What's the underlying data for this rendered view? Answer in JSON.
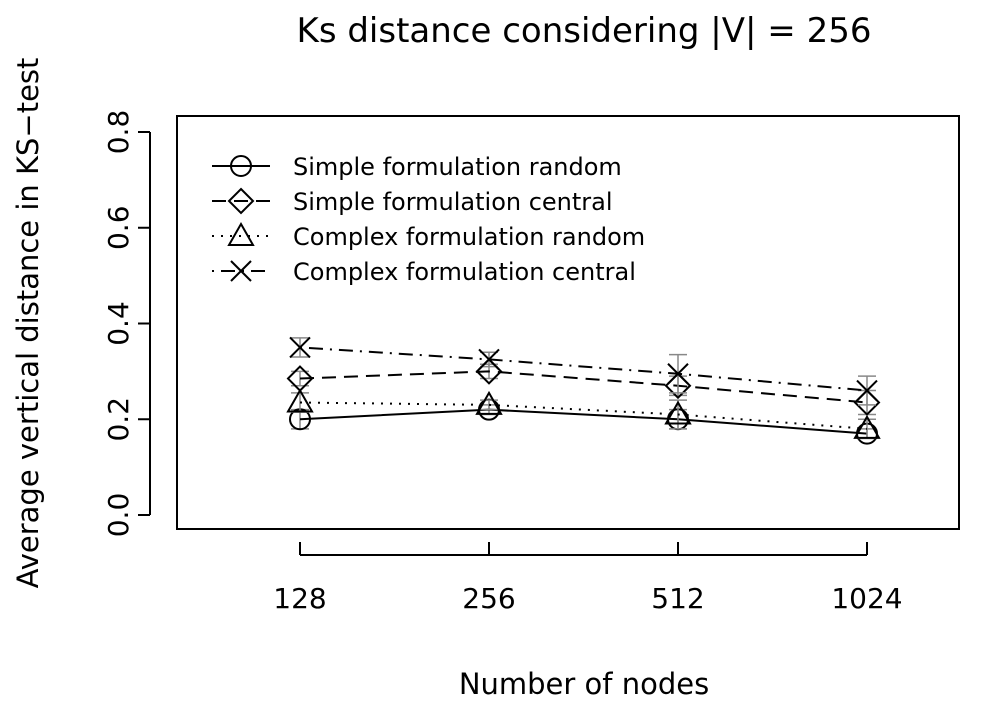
{
  "chart_data": {
    "type": "line",
    "title": "Ks distance considering |V| = 256",
    "xlabel": "Number of nodes",
    "ylabel": "Average vertical distance in KS−test",
    "categories": [
      "128",
      "256",
      "512",
      "1024"
    ],
    "ylim": [
      0.0,
      0.8
    ],
    "yticks": [
      "0.0",
      "0.2",
      "0.4",
      "0.6",
      "0.8"
    ],
    "legend_position": "top-left",
    "series": [
      {
        "name": "Simple formulation random",
        "marker": "circle",
        "line": "solid",
        "values": [
          0.2,
          0.22,
          0.2,
          0.17
        ],
        "err": [
          0.02,
          0.01,
          0.02,
          0.01
        ]
      },
      {
        "name": "Simple formulation central",
        "marker": "diamond",
        "line": "dashed",
        "values": [
          0.285,
          0.3,
          0.27,
          0.235
        ],
        "err": [
          0.015,
          0.015,
          0.02,
          0.025
        ]
      },
      {
        "name": "Complex formulation random",
        "marker": "triangle",
        "line": "dotted",
        "values": [
          0.235,
          0.23,
          0.21,
          0.18
        ],
        "err": [
          0.02,
          0.01,
          0.03,
          0.02
        ]
      },
      {
        "name": "Complex formulation central",
        "marker": "x",
        "line": "dotdash",
        "values": [
          0.35,
          0.325,
          0.295,
          0.26
        ],
        "err": [
          0.02,
          0.015,
          0.04,
          0.03
        ]
      }
    ]
  }
}
